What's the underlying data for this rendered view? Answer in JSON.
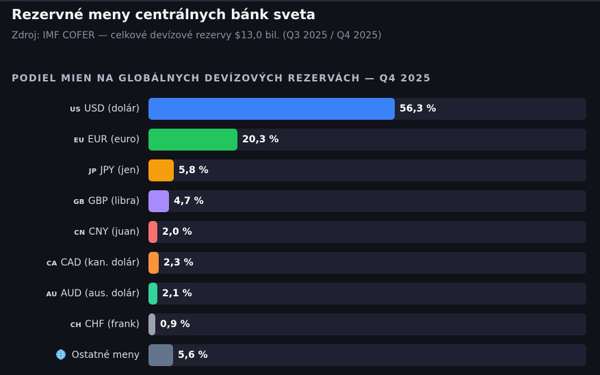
{
  "header": {
    "title": "Rezervné meny centrálnych bánk sveta",
    "subtitle": "Zdroj: IMF COFER — celkové devízové rezervy $13,0 bil. (Q3 2025 / Q4 2025)"
  },
  "section_heading": "PODIEL MIEN NA GLOBÁLNYCH DEVÍZOVÝCH REZERVÁCH — Q4 2025",
  "chart_data": {
    "type": "bar",
    "orientation": "horizontal",
    "categories": [
      "USD (dolár)",
      "EUR (euro)",
      "JPY (jen)",
      "GBP (libra)",
      "CNY (juan)",
      "CAD (kan. dolár)",
      "AUD (aus. dolár)",
      "CHF (frank)",
      "Ostatné meny"
    ],
    "country_codes": [
      "US",
      "EU",
      "JP",
      "GB",
      "CN",
      "CA",
      "AU",
      "CH",
      ""
    ],
    "values": [
      56.3,
      20.3,
      5.8,
      4.7,
      2.0,
      2.3,
      2.1,
      0.9,
      5.6
    ],
    "value_labels": [
      "56,3 %",
      "20,3 %",
      "5,8 %",
      "4,7 %",
      "2,0 %",
      "2,3 %",
      "2,1 %",
      "0,9 %",
      "5,6 %"
    ],
    "colors": [
      "#3b82f6",
      "#22c55e",
      "#f59e0b",
      "#a78bfa",
      "#f87171",
      "#fb923c",
      "#34d399",
      "#9ca3af",
      "#64748b"
    ],
    "icons": [
      "",
      "",
      "",
      "",
      "",
      "",
      "",
      "",
      "globe-icon"
    ],
    "xlim": [
      0,
      100
    ],
    "track_color": "#1f2130",
    "grid": false,
    "legend": "none"
  }
}
